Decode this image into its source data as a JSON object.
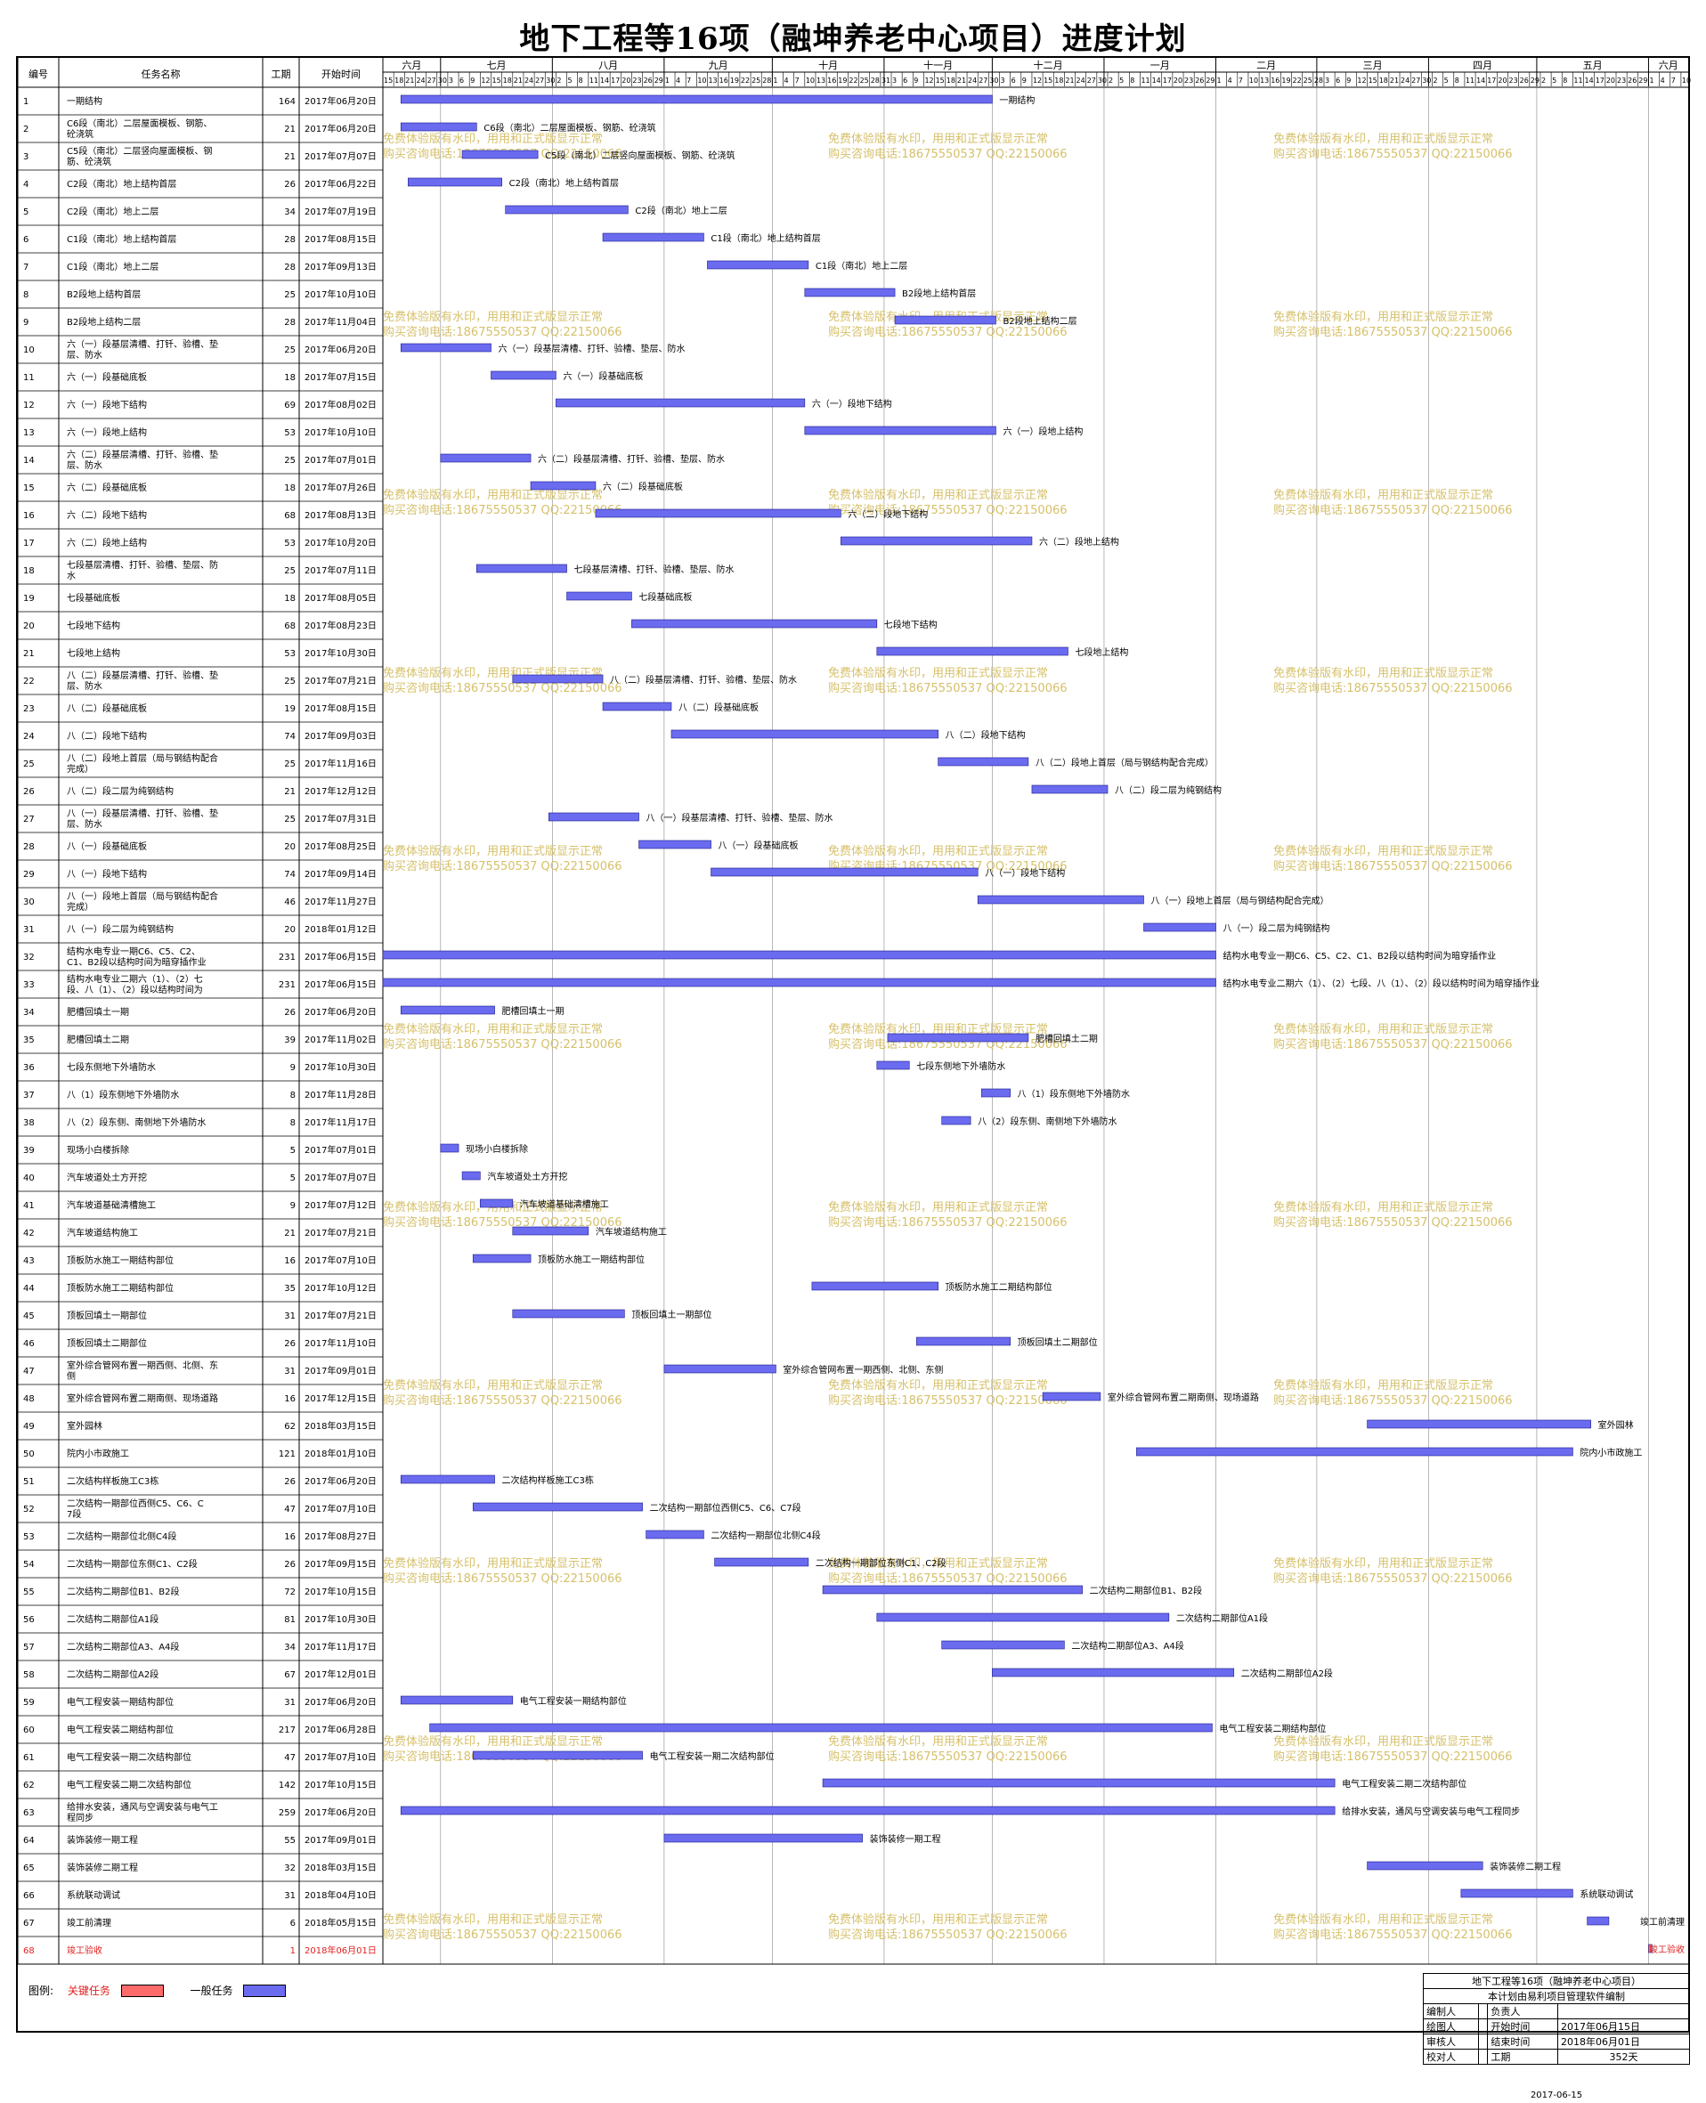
{
  "title": "地下工程等16项（融坤养老中心项目）进度计划",
  "columns": {
    "id": "编号",
    "name": "任务名称",
    "duration": "工期",
    "start": "开始时间"
  },
  "months": [
    {
      "label": "六月",
      "days": [
        15,
        18,
        21,
        24,
        27,
        30
      ]
    },
    {
      "label": "七月",
      "days": [
        3,
        6,
        9,
        12,
        15,
        18,
        21,
        24,
        27,
        30
      ]
    },
    {
      "label": "八月",
      "days": [
        2,
        5,
        8,
        11,
        14,
        17,
        20,
        23,
        26,
        29
      ]
    },
    {
      "label": "九月",
      "days": [
        1,
        4,
        7,
        10,
        13,
        16,
        19,
        22,
        25,
        28
      ]
    },
    {
      "label": "十月",
      "days": [
        1,
        4,
        7,
        10,
        13,
        16,
        19,
        22,
        25,
        28,
        31
      ]
    },
    {
      "label": "十一月",
      "days": [
        3,
        6,
        9,
        12,
        15,
        18,
        21,
        24,
        27,
        30
      ]
    },
    {
      "label": "十二月",
      "days": [
        3,
        6,
        9,
        12,
        15,
        18,
        21,
        24,
        27,
        30
      ]
    },
    {
      "label": "一月",
      "days": [
        2,
        5,
        8,
        11,
        14,
        17,
        20,
        23,
        26,
        29
      ]
    },
    {
      "label": "二月",
      "days": [
        1,
        4,
        7,
        10,
        13,
        16,
        19,
        22,
        25,
        28
      ]
    },
    {
      "label": "三月",
      "days": [
        3,
        6,
        9,
        12,
        15,
        18,
        21,
        24,
        27,
        30
      ]
    },
    {
      "label": "四月",
      "days": [
        2,
        5,
        8,
        11,
        14,
        17,
        20,
        23,
        26,
        29
      ]
    },
    {
      "label": "五月",
      "days": [
        2,
        5,
        8,
        11,
        14,
        17,
        20,
        23,
        26,
        29
      ]
    },
    {
      "label": "六月",
      "days": [
        1,
        4,
        7,
        10
      ]
    }
  ],
  "watermark": {
    "line1": "免费体验版有水印，用用和正式版显示正常",
    "line2": "购买咨询电话:18675550537 QQ:22150066"
  },
  "chart_data": {
    "type": "gantt",
    "axis_start": "2017-06-15",
    "axis_end": "2018-06-12",
    "tasks": [
      {
        "id": "1",
        "name": "一期结构",
        "duration": 164,
        "start": "2017年06月20日",
        "date": "2017-06-20",
        "label": "一期结构"
      },
      {
        "id": "2",
        "name": "C6段（南北）二层屋面模板、钢筋、砼浇筑",
        "duration": 21,
        "start": "2017年06月20日",
        "date": "2017-06-20",
        "label": "C6段（南北）二层屋面模板、钢筋、砼浇筑"
      },
      {
        "id": "3",
        "name": "C5段（南北）二层竖向屋面模板、钢筋、砼浇筑",
        "duration": 21,
        "start": "2017年07月07日",
        "date": "2017-07-07",
        "label": "C5段（南北）二层竖向屋面模板、钢筋、砼浇筑"
      },
      {
        "id": "4",
        "name": "C2段（南北）地上结构首层",
        "duration": 26,
        "start": "2017年06月22日",
        "date": "2017-06-22",
        "label": "C2段（南北）地上结构首层"
      },
      {
        "id": "5",
        "name": "C2段（南北）地上二层",
        "duration": 34,
        "start": "2017年07月19日",
        "date": "2017-07-19",
        "label": "C2段（南北）地上二层"
      },
      {
        "id": "6",
        "name": "C1段（南北）地上结构首层",
        "duration": 28,
        "start": "2017年08月15日",
        "date": "2017-08-15",
        "label": "C1段（南北）地上结构首层"
      },
      {
        "id": "7",
        "name": "C1段（南北）地上二层",
        "duration": 28,
        "start": "2017年09月13日",
        "date": "2017-09-13",
        "label": "C1段（南北）地上二层"
      },
      {
        "id": "8",
        "name": "B2段地上结构首层",
        "duration": 25,
        "start": "2017年10月10日",
        "date": "2017-10-10",
        "label": "B2段地上结构首层"
      },
      {
        "id": "9",
        "name": "B2段地上结构二层",
        "duration": 28,
        "start": "2017年11月04日",
        "date": "2017-11-04",
        "label": "B2段地上结构二层"
      },
      {
        "id": "10",
        "name": "六（一）段基层清槽、打钎、验槽、垫层、防水",
        "duration": 25,
        "start": "2017年06月20日",
        "date": "2017-06-20",
        "label": "六（一）段基层清槽、打钎、验槽、垫层、防水"
      },
      {
        "id": "11",
        "name": "六（一）段基础底板",
        "duration": 18,
        "start": "2017年07月15日",
        "date": "2017-07-15",
        "label": "六（一）段基础底板"
      },
      {
        "id": "12",
        "name": "六（一）段地下结构",
        "duration": 69,
        "start": "2017年08月02日",
        "date": "2017-08-02",
        "label": "六（一）段地下结构"
      },
      {
        "id": "13",
        "name": "六（一）段地上结构",
        "duration": 53,
        "start": "2017年10月10日",
        "date": "2017-10-10",
        "label": "六（一）段地上结构"
      },
      {
        "id": "14",
        "name": "六（二）段基层清槽、打钎、验槽、垫层、防水",
        "duration": 25,
        "start": "2017年07月01日",
        "date": "2017-07-01",
        "label": "六（二）段基层清槽、打钎、验槽、垫层、防水"
      },
      {
        "id": "15",
        "name": "六（二）段基础底板",
        "duration": 18,
        "start": "2017年07月26日",
        "date": "2017-07-26",
        "label": "六（二）段基础底板"
      },
      {
        "id": "16",
        "name": "六（二）段地下结构",
        "duration": 68,
        "start": "2017年08月13日",
        "date": "2017-08-13",
        "label": "六（二）段地下结构"
      },
      {
        "id": "17",
        "name": "六（二）段地上结构",
        "duration": 53,
        "start": "2017年10月20日",
        "date": "2017-10-20",
        "label": "六（二）段地上结构"
      },
      {
        "id": "18",
        "name": "七段基层清槽、打钎、验槽、垫层、防水",
        "duration": 25,
        "start": "2017年07月11日",
        "date": "2017-07-11",
        "label": "七段基层清槽、打钎、验槽、垫层、防水"
      },
      {
        "id": "19",
        "name": "七段基础底板",
        "duration": 18,
        "start": "2017年08月05日",
        "date": "2017-08-05",
        "label": "七段基础底板"
      },
      {
        "id": "20",
        "name": "七段地下结构",
        "duration": 68,
        "start": "2017年08月23日",
        "date": "2017-08-23",
        "label": "七段地下结构"
      },
      {
        "id": "21",
        "name": "七段地上结构",
        "duration": 53,
        "start": "2017年10月30日",
        "date": "2017-10-30",
        "label": "七段地上结构"
      },
      {
        "id": "22",
        "name": "八（二）段基层清槽、打钎、验槽、垫层、防水",
        "duration": 25,
        "start": "2017年07月21日",
        "date": "2017-07-21",
        "label": "八（二）段基层清槽、打钎、验槽、垫层、防水"
      },
      {
        "id": "23",
        "name": "八（二）段基础底板",
        "duration": 19,
        "start": "2017年08月15日",
        "date": "2017-08-15",
        "label": "八（二）段基础底板"
      },
      {
        "id": "24",
        "name": "八（二）段地下结构",
        "duration": 74,
        "start": "2017年09月03日",
        "date": "2017-09-03",
        "label": "八（二）段地下结构"
      },
      {
        "id": "25",
        "name": "八（二）段地上首层（局与钢结构配合完成）",
        "duration": 25,
        "start": "2017年11月16日",
        "date": "2017-11-16",
        "label": "八（二）段地上首层（局与钢结构配合完成）"
      },
      {
        "id": "26",
        "name": "八（二）段二层为纯钢结构",
        "duration": 21,
        "start": "2017年12月12日",
        "date": "2017-12-12",
        "label": "八（二）段二层为纯钢结构"
      },
      {
        "id": "27",
        "name": "八（一）段基层清槽、打钎、验槽、垫层、防水",
        "duration": 25,
        "start": "2017年07月31日",
        "date": "2017-07-31",
        "label": "八（一）段基层清槽、打钎、验槽、垫层、防水"
      },
      {
        "id": "28",
        "name": "八（一）段基础底板",
        "duration": 20,
        "start": "2017年08月25日",
        "date": "2017-08-25",
        "label": "八（一）段基础底板"
      },
      {
        "id": "29",
        "name": "八（一）段地下结构",
        "duration": 74,
        "start": "2017年09月14日",
        "date": "2017-09-14",
        "label": "八（一）段地下结构"
      },
      {
        "id": "30",
        "name": "八（一）段地上首层（局与钢结构配合完成）",
        "duration": 46,
        "start": "2017年11月27日",
        "date": "2017-11-27",
        "label": "八（一）段地上首层（局与钢结构配合完成）"
      },
      {
        "id": "31",
        "name": "八（一）段二层为纯钢结构",
        "duration": 20,
        "start": "2018年01月12日",
        "date": "2018-01-12",
        "label": "八（一）段二层为纯钢结构"
      },
      {
        "id": "32",
        "name": "结构水电专业一期C6、C5、C2、C1、B2段以结构时间为暗穿插作业",
        "duration": 231,
        "start": "2017年06月15日",
        "date": "2017-06-15",
        "label": "结构水电专业一期C6、C5、C2、C1、B2段以结构时间为暗穿插作业"
      },
      {
        "id": "33",
        "name": "结构水电专业二期六（1）、（2）七段、八（1）、（2）段以结构时间为暗穿插作业",
        "duration": 231,
        "start": "2017年06月15日",
        "date": "2017-06-15",
        "label": "结构水电专业二期六（1）、（2）七段、八（1）、（2）段以结构时间为暗穿插作业"
      },
      {
        "id": "34",
        "name": "肥槽回填土一期",
        "duration": 26,
        "start": "2017年06月20日",
        "date": "2017-06-20",
        "label": "肥槽回填土一期"
      },
      {
        "id": "35",
        "name": "肥槽回填土二期",
        "duration": 39,
        "start": "2017年11月02日",
        "date": "2017-11-02",
        "label": "肥槽回填土二期"
      },
      {
        "id": "36",
        "name": "七段东侧地下外墙防水",
        "duration": 9,
        "start": "2017年10月30日",
        "date": "2017-10-30",
        "label": "七段东侧地下外墙防水"
      },
      {
        "id": "37",
        "name": "八（1）段东侧地下外墙防水",
        "duration": 8,
        "start": "2017年11月28日",
        "date": "2017-11-28",
        "label": "八（1）段东侧地下外墙防水"
      },
      {
        "id": "38",
        "name": "八（2）段东侧、南侧地下外墙防水",
        "duration": 8,
        "start": "2017年11月17日",
        "date": "2017-11-17",
        "label": "八（2）段东侧、南侧地下外墙防水"
      },
      {
        "id": "39",
        "name": "现场小白楼拆除",
        "duration": 5,
        "start": "2017年07月01日",
        "date": "2017-07-01",
        "label": "现场小白楼拆除"
      },
      {
        "id": "40",
        "name": "汽车坡道处土方开挖",
        "duration": 5,
        "start": "2017年07月07日",
        "date": "2017-07-07",
        "label": "汽车坡道处土方开挖"
      },
      {
        "id": "41",
        "name": "汽车坡道基础清槽施工",
        "duration": 9,
        "start": "2017年07月12日",
        "date": "2017-07-12",
        "label": "汽车坡道基础清槽施工"
      },
      {
        "id": "42",
        "name": "汽车坡道结构施工",
        "duration": 21,
        "start": "2017年07月21日",
        "date": "2017-07-21",
        "label": "汽车坡道结构施工"
      },
      {
        "id": "43",
        "name": "顶板防水施工一期结构部位",
        "duration": 16,
        "start": "2017年07月10日",
        "date": "2017-07-10",
        "label": "顶板防水施工一期结构部位"
      },
      {
        "id": "44",
        "name": "顶板防水施工二期结构部位",
        "duration": 35,
        "start": "2017年10月12日",
        "date": "2017-10-12",
        "label": "顶板防水施工二期结构部位"
      },
      {
        "id": "45",
        "name": "顶板回填土一期部位",
        "duration": 31,
        "start": "2017年07月21日",
        "date": "2017-07-21",
        "label": "顶板回填土一期部位"
      },
      {
        "id": "46",
        "name": "顶板回填土二期部位",
        "duration": 26,
        "start": "2017年11月10日",
        "date": "2017-11-10",
        "label": "顶板回填土二期部位"
      },
      {
        "id": "47",
        "name": "室外综合管网布置一期西侧、北侧、东侧",
        "duration": 31,
        "start": "2017年09月01日",
        "date": "2017-09-01",
        "label": "室外综合管网布置一期西侧、北侧、东侧"
      },
      {
        "id": "48",
        "name": "室外综合管网布置二期南侧、现场道路",
        "duration": 16,
        "start": "2017年12月15日",
        "date": "2017-12-15",
        "label": "室外综合管网布置二期南侧、现场道路"
      },
      {
        "id": "49",
        "name": "室外园林",
        "duration": 62,
        "start": "2018年03月15日",
        "date": "2018-03-15",
        "label": "室外园林"
      },
      {
        "id": "50",
        "name": "院内小市政施工",
        "duration": 121,
        "start": "2018年01月10日",
        "date": "2018-01-10",
        "label": "院内小市政施工"
      },
      {
        "id": "51",
        "name": "二次结构样板施工C3栋",
        "duration": 26,
        "start": "2017年06月20日",
        "date": "2017-06-20",
        "label": "二次结构样板施工C3栋"
      },
      {
        "id": "52",
        "name": "二次结构一期部位西侧C5、C6、C7段",
        "duration": 47,
        "start": "2017年07月10日",
        "date": "2017-07-10",
        "label": "二次结构一期部位西侧C5、C6、C7段"
      },
      {
        "id": "53",
        "name": "二次结构一期部位北侧C4段",
        "duration": 16,
        "start": "2017年08月27日",
        "date": "2017-08-27",
        "label": "二次结构一期部位北侧C4段"
      },
      {
        "id": "54",
        "name": "二次结构一期部位东侧C1、C2段",
        "duration": 26,
        "start": "2017年09月15日",
        "date": "2017-09-15",
        "label": "二次结构一期部位东侧C1、C2段"
      },
      {
        "id": "55",
        "name": "二次结构二期部位B1、B2段",
        "duration": 72,
        "start": "2017年10月15日",
        "date": "2017-10-15",
        "label": "二次结构二期部位B1、B2段"
      },
      {
        "id": "56",
        "name": "二次结构二期部位A1段",
        "duration": 81,
        "start": "2017年10月30日",
        "date": "2017-10-30",
        "label": "二次结构二期部位A1段"
      },
      {
        "id": "57",
        "name": "二次结构二期部位A3、A4段",
        "duration": 34,
        "start": "2017年11月17日",
        "date": "2017-11-17",
        "label": "二次结构二期部位A3、A4段"
      },
      {
        "id": "58",
        "name": "二次结构二期部位A2段",
        "duration": 67,
        "start": "2017年12月01日",
        "date": "2017-12-01",
        "label": "二次结构二期部位A2段"
      },
      {
        "id": "59",
        "name": "电气工程安装一期结构部位",
        "duration": 31,
        "start": "2017年06月20日",
        "date": "2017-06-20",
        "label": "电气工程安装一期结构部位"
      },
      {
        "id": "60",
        "name": "电气工程安装二期结构部位",
        "duration": 217,
        "start": "2017年06月28日",
        "date": "2017-06-28",
        "label": "电气工程安装二期结构部位"
      },
      {
        "id": "61",
        "name": "电气工程安装一期二次结构部位",
        "duration": 47,
        "start": "2017年07月10日",
        "date": "2017-07-10",
        "label": "电气工程安装一期二次结构部位"
      },
      {
        "id": "62",
        "name": "电气工程安装二期二次结构部位",
        "duration": 142,
        "start": "2017年10月15日",
        "date": "2017-10-15",
        "label": "电气工程安装二期二次结构部位"
      },
      {
        "id": "63",
        "name": "给排水安装，通风与空调安装与电气工程同步",
        "duration": 259,
        "start": "2017年06月20日",
        "date": "2017-06-20",
        "label": "给排水安装，通风与空调安装与电气工程同步"
      },
      {
        "id": "64",
        "name": "装饰装修一期工程",
        "duration": 55,
        "start": "2017年09月01日",
        "date": "2017-09-01",
        "label": "装饰装修一期工程"
      },
      {
        "id": "65",
        "name": "装饰装修二期工程",
        "duration": 32,
        "start": "2018年03月15日",
        "date": "2018-03-15",
        "label": "装饰装修二期工程"
      },
      {
        "id": "66",
        "name": "系统联动调试",
        "duration": 31,
        "start": "2018年04月10日",
        "date": "2018-04-10",
        "label": "系统联动调试"
      },
      {
        "id": "67",
        "name": "竣工前清理",
        "duration": 6,
        "start": "2018年05月15日",
        "date": "2018-05-15",
        "label": "竣工前清理"
      },
      {
        "id": "68",
        "name": "竣工验收",
        "duration": 1,
        "start": "2018年06月01日",
        "date": "2018-06-01",
        "label": "竣工验收",
        "critical": true
      }
    ],
    "colors": {
      "normal": "#6b6bf0",
      "critical": "#ff6b6b",
      "grid": "#000000"
    }
  },
  "legend": {
    "title": "图例:",
    "critical": "关键任务",
    "normal": "一般任务"
  },
  "footer": {
    "header": "地下工程等16项（融坤养老中心项目）",
    "note": "本计划由易利项目管理软件编制",
    "rows": [
      {
        "a": "编制人",
        "b": "",
        "c": "负责人",
        "d": ""
      },
      {
        "a": "绘图人",
        "b": "",
        "c": "开始时间",
        "d": "2017年06月15日"
      },
      {
        "a": "审核人",
        "b": "",
        "c": "结束时间",
        "d": "2018年06月01日"
      },
      {
        "a": "校对人",
        "b": "",
        "c": "工期",
        "d": "352天"
      }
    ],
    "date": "2017-06-15"
  }
}
